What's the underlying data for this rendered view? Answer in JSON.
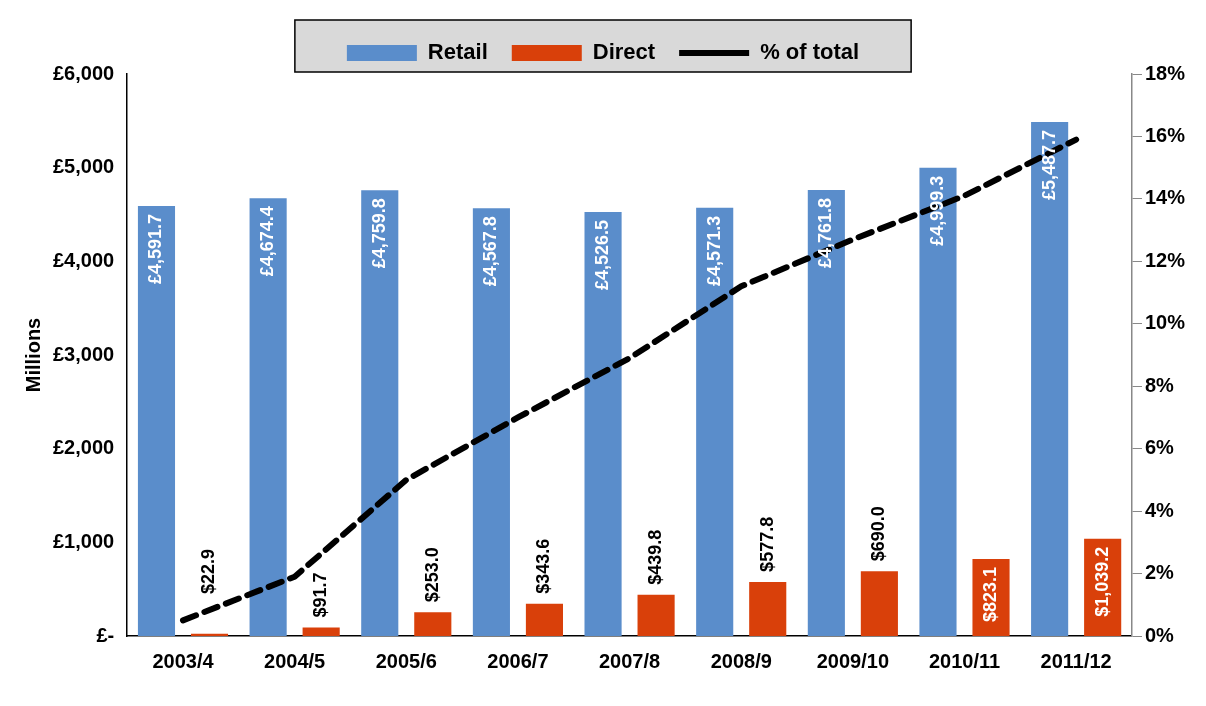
{
  "chart_data": {
    "type": "bar",
    "categories": [
      "2003/4",
      "2004/5",
      "2005/6",
      "2006/7",
      "2007/8",
      "2008/9",
      "2009/10",
      "2010/11",
      "2011/12"
    ],
    "ylabel": "Millions",
    "series": [
      {
        "name": "Retail",
        "color": "#5a8dcb",
        "values": [
          4591.7,
          4674.4,
          4759.8,
          4567.8,
          4526.5,
          4571.3,
          4761.8,
          4999.3,
          5487.7
        ],
        "value_labels": [
          "£4,591.7",
          "£4,674.4",
          "£4,759.8",
          "£4,567.8",
          "£4,526.5",
          "£4,571.3",
          "£4,761.8",
          "£4,999.3",
          "£5,487.7"
        ]
      },
      {
        "name": "Direct",
        "color": "#d9400a",
        "values": [
          22.9,
          91.7,
          253.0,
          343.6,
          439.8,
          577.8,
          690.0,
          823.1,
          1039.2
        ],
        "value_labels": [
          "$22.9",
          "$91.7",
          "$253.0",
          "$343.6",
          "$439.8",
          "$577.8",
          "$690.0",
          "$823.1",
          "$1,039.2"
        ]
      },
      {
        "name": "% of total",
        "type": "line",
        "axis": "y2",
        "color": "#000000",
        "line_style": "dashed",
        "marker": "none",
        "values": [
          0.5,
          1.9,
          5.0,
          7.0,
          8.9,
          11.2,
          12.7,
          14.1,
          15.9
        ]
      }
    ],
    "ylim": [
      0,
      6000
    ],
    "yticks": [
      {
        "value": 0,
        "label": "£-"
      },
      {
        "value": 1000,
        "label": "£1,000"
      },
      {
        "value": 2000,
        "label": "£2,000"
      },
      {
        "value": 3000,
        "label": "£3,000"
      },
      {
        "value": 4000,
        "label": "£4,000"
      },
      {
        "value": 5000,
        "label": "£5,000"
      },
      {
        "value": 6000,
        "label": "£6,000"
      }
    ],
    "y2lim": [
      0,
      18
    ],
    "y2ticks": [
      {
        "value": 0,
        "label": "0%"
      },
      {
        "value": 2,
        "label": "2%"
      },
      {
        "value": 4,
        "label": "4%"
      },
      {
        "value": 6,
        "label": "6%"
      },
      {
        "value": 8,
        "label": "8%"
      },
      {
        "value": 10,
        "label": "10%"
      },
      {
        "value": 12,
        "label": "12%"
      },
      {
        "value": 14,
        "label": "14%"
      },
      {
        "value": 16,
        "label": "16%"
      },
      {
        "value": 18,
        "label": "18%"
      }
    ],
    "grid": false,
    "legend": "top"
  }
}
